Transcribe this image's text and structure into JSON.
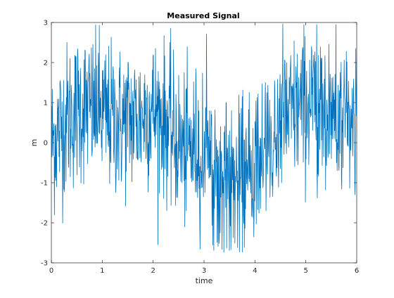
{
  "chart_data": {
    "type": "line",
    "title": "Measured Signal",
    "xlabel": "time",
    "ylabel": "m",
    "xlim": [
      0,
      6
    ],
    "ylim": [
      -3,
      3
    ],
    "xticks": [
      0,
      1,
      2,
      3,
      4,
      5,
      6
    ],
    "yticks": [
      -3,
      -2,
      -1,
      0,
      1,
      2,
      3
    ],
    "xtick_labels": [
      "0",
      "1",
      "2",
      "3",
      "4",
      "5",
      "6"
    ],
    "ytick_labels": [
      "-3",
      "-2",
      "-1",
      "0",
      "1",
      "2",
      "3"
    ],
    "grid": false,
    "legend": "none",
    "series_color": "#0072BD",
    "series": [
      {
        "x": [
          0.0,
          0.1,
          0.2,
          0.3,
          0.4,
          0.5,
          0.6,
          0.7,
          0.8,
          0.9,
          1.0,
          1.1,
          1.2,
          1.3,
          1.4,
          1.5,
          1.6,
          1.7,
          1.8,
          1.9,
          2.0,
          2.1,
          2.2,
          2.3,
          2.4,
          2.5,
          2.6,
          2.7,
          2.8,
          2.9,
          3.0,
          3.1,
          3.2,
          3.3,
          3.4,
          3.5,
          3.6,
          3.7,
          3.8,
          3.9,
          4.0,
          4.1,
          4.2,
          4.3,
          4.4,
          4.5,
          4.6,
          4.7,
          4.8,
          4.9,
          5.0,
          5.1,
          5.2,
          5.3,
          5.4,
          5.5,
          5.6,
          5.7,
          5.8,
          5.9,
          6.0
        ],
        "y": [
          0.0,
          0.2,
          0.4,
          0.6,
          0.7,
          0.8,
          0.9,
          0.9,
          0.8,
          0.8,
          0.7,
          0.6,
          0.6,
          0.5,
          0.5,
          0.6,
          0.6,
          0.6,
          0.7,
          0.8,
          0.8,
          0.7,
          0.6,
          0.4,
          0.2,
          0.0,
          -0.2,
          -0.2,
          -0.1,
          0.0,
          -0.2,
          -0.4,
          -0.6,
          -0.8,
          -0.9,
          -1.0,
          -1.0,
          -1.0,
          -0.9,
          -0.8,
          -0.6,
          -0.4,
          -0.2,
          0.0,
          0.2,
          0.4,
          0.6,
          0.7,
          0.8,
          0.9,
          1.0,
          1.0,
          1.0,
          0.9,
          0.8,
          0.7,
          0.6,
          0.5,
          0.5,
          0.6,
          0.7
        ],
        "noise_amplitude": 1.1
      }
    ]
  }
}
